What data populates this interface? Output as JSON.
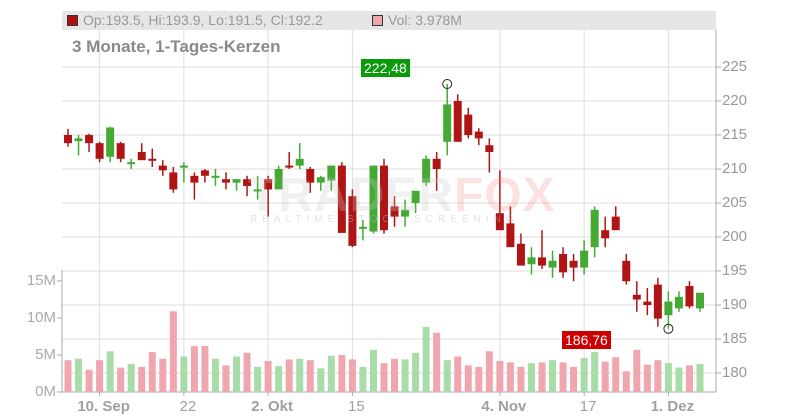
{
  "legend": {
    "ohlc_label": "Op:193.5, Hi:193.9, Lo:191.5, Cl:192.2",
    "vol_label": "Vol: 3.978M",
    "ohlc_color": "#b01010",
    "vol_color": "#f0a6ae"
  },
  "subtitle": "3 Monate, 1-Tages-Kerzen",
  "watermark": {
    "brand_a": "TRADER",
    "brand_b": "FOX",
    "tagline": "REALTIME STOCK SCREENING"
  },
  "callouts": {
    "high": {
      "label": "222,48",
      "color": "#0a9a0a"
    },
    "low": {
      "label": "186,76",
      "color": "#cc0000"
    }
  },
  "colors": {
    "up": "#44aa33",
    "down": "#b01515",
    "vol_up": "#a8dca8",
    "vol_down": "#f0a6ae",
    "grid": "#dddddd",
    "axis": "#aaaaaa"
  },
  "chart_data": {
    "type": "candlestick",
    "title": "3 Monate, 1-Tages-Kerzen",
    "price_axis": {
      "ticks": [
        180,
        185,
        190,
        195,
        200,
        205,
        210,
        215,
        220,
        225
      ],
      "position": "right"
    },
    "volume_axis": {
      "ticks": [
        "0M",
        "5M",
        "10M",
        "15M"
      ],
      "position": "left"
    },
    "x_ticks": [
      {
        "label": "10. Sep",
        "major": true,
        "index": 3
      },
      {
        "label": "22",
        "major": false,
        "index": 11
      },
      {
        "label": "2. Okt",
        "major": true,
        "index": 19
      },
      {
        "label": "15",
        "major": false,
        "index": 27
      },
      {
        "label": "4. Nov",
        "major": true,
        "index": 41
      },
      {
        "label": "17",
        "major": false,
        "index": 49
      },
      {
        "label": "1. Dez",
        "major": true,
        "index": 57
      }
    ],
    "annotations": [
      {
        "label": "222,48",
        "type": "high"
      },
      {
        "label": "186,76",
        "type": "low"
      }
    ],
    "candles": [
      [
        215.0,
        215.9,
        213.3,
        213.8,
        4.3
      ],
      [
        214.1,
        215.0,
        212.0,
        214.5,
        4.5
      ],
      [
        215.0,
        215.2,
        212.5,
        213.8,
        3.0
      ],
      [
        213.8,
        214.0,
        211.0,
        211.5,
        4.3
      ],
      [
        211.8,
        216.2,
        211.0,
        216.1,
        5.5
      ],
      [
        213.8,
        214.0,
        211.0,
        211.5,
        3.3
      ],
      [
        211.0,
        211.5,
        210.0,
        211.0,
        3.8
      ],
      [
        212.5,
        213.8,
        211.5,
        211.3,
        3.4
      ],
      [
        211.5,
        213.0,
        210.3,
        211.4,
        5.4
      ],
      [
        210.5,
        211.3,
        209.0,
        209.8,
        4.5
      ],
      [
        209.5,
        210.3,
        206.5,
        207.0,
        10.9
      ],
      [
        210.2,
        211.0,
        208.0,
        210.5,
        4.8
      ],
      [
        209.0,
        209.5,
        205.5,
        208.0,
        6.2
      ],
      [
        209.8,
        210.0,
        208.0,
        209.0,
        6.2
      ],
      [
        209.0,
        210.0,
        207.5,
        209.0,
        4.5
      ],
      [
        208.5,
        209.5,
        207.0,
        208.0,
        3.6
      ],
      [
        208.0,
        208.5,
        206.8,
        208.5,
        4.8
      ],
      [
        208.5,
        209.0,
        206.0,
        207.5,
        5.3
      ],
      [
        206.8,
        209.0,
        205.5,
        207.0,
        3.4
      ],
      [
        208.5,
        209.0,
        203.0,
        207.0,
        4.2
      ],
      [
        207.0,
        210.5,
        208.5,
        210.0,
        3.5
      ],
      [
        210.5,
        212.5,
        210.0,
        210.3,
        4.4
      ],
      [
        210.5,
        213.8,
        210.0,
        211.5,
        4.5
      ],
      [
        210.0,
        210.3,
        206.5,
        208.0,
        4.3
      ],
      [
        208.0,
        209.0,
        206.8,
        208.8,
        3.2
      ],
      [
        208.3,
        210.5,
        206.8,
        210.5,
        4.9
      ],
      [
        210.5,
        211.0,
        200.8,
        200.6,
        5.0
      ],
      [
        206.0,
        207.0,
        198.5,
        198.7,
        4.4
      ],
      [
        201.5,
        202.5,
        199.5,
        201.5,
        3.4
      ],
      [
        200.8,
        210.5,
        200.5,
        210.5,
        5.7
      ],
      [
        210.5,
        211.5,
        200.5,
        201.0,
        3.9
      ],
      [
        204.5,
        206.0,
        201.5,
        203.0,
        4.5
      ],
      [
        203.0,
        205.5,
        201.5,
        204.0,
        4.4
      ],
      [
        205.0,
        205.5,
        203.5,
        206.8,
        5.3
      ],
      [
        208.0,
        212.0,
        207.5,
        211.5,
        8.8
      ],
      [
        211.5,
        212.5,
        206.8,
        210.0,
        8.0
      ],
      [
        214.0,
        222.5,
        212.0,
        219.5,
        4.3
      ],
      [
        220.0,
        221.0,
        214.0,
        214.0,
        4.8
      ],
      [
        218.0,
        219.0,
        214.5,
        215.0,
        3.6
      ],
      [
        215.5,
        216.0,
        213.5,
        214.5,
        3.4
      ],
      [
        213.5,
        214.5,
        209.5,
        212.5,
        5.5
      ],
      [
        203.5,
        209.8,
        201.5,
        201.0,
        4.2
      ],
      [
        202.0,
        204.5,
        199.5,
        198.5,
        4.0
      ],
      [
        199.0,
        200.5,
        197.5,
        195.8,
        3.4
      ],
      [
        196.0,
        198.5,
        194.5,
        197.0,
        3.9
      ],
      [
        197.0,
        201.0,
        195.3,
        195.8,
        4.0
      ],
      [
        195.5,
        198.0,
        194.0,
        196.5,
        4.3
      ],
      [
        197.5,
        198.5,
        194.0,
        194.8,
        4.0
      ],
      [
        196.5,
        197.5,
        193.5,
        195.5,
        3.4
      ],
      [
        195.5,
        199.5,
        194.5,
        198.0,
        4.6
      ],
      [
        198.5,
        204.5,
        197.0,
        204.0,
        5.4
      ],
      [
        201.0,
        203.0,
        198.5,
        199.8,
        4.1
      ],
      [
        203.0,
        204.5,
        201.5,
        201.0,
        4.7
      ],
      [
        196.5,
        197.5,
        193.0,
        193.5,
        2.8
      ],
      [
        191.5,
        193.5,
        189.0,
        190.8,
        5.7
      ],
      [
        190.5,
        192.5,
        188.5,
        190.0,
        3.7
      ],
      [
        193.0,
        194.0,
        186.8,
        188.0,
        4.3
      ],
      [
        188.5,
        192.0,
        186.5,
        190.5,
        3.9
      ],
      [
        189.5,
        192.0,
        189.0,
        191.2,
        3.3
      ],
      [
        192.8,
        193.5,
        189.5,
        189.8,
        3.6
      ],
      [
        189.5,
        191.5,
        189.0,
        191.8,
        3.8
      ]
    ]
  }
}
